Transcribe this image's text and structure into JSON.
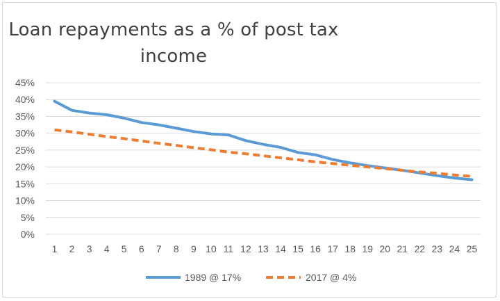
{
  "chart_data": {
    "type": "line",
    "title": "Loan repayments as a % of post tax income",
    "title_line1": "Loan repayments as a % of post tax",
    "title_line2": "income",
    "x": [
      1,
      2,
      3,
      4,
      5,
      6,
      7,
      8,
      9,
      10,
      11,
      12,
      13,
      14,
      15,
      16,
      17,
      18,
      19,
      20,
      21,
      22,
      23,
      24,
      25
    ],
    "y_ticks": [
      "0%",
      "5%",
      "10%",
      "15%",
      "20%",
      "25%",
      "30%",
      "35%",
      "40%",
      "45%"
    ],
    "ylim": [
      0,
      45
    ],
    "grid": true,
    "legend_position": "bottom",
    "series": [
      {
        "name": "1989 @ 17%",
        "color": "#5b9bd5",
        "style": "solid",
        "values": [
          39.5,
          36.8,
          36.0,
          35.5,
          34.5,
          33.2,
          32.5,
          31.5,
          30.5,
          29.8,
          29.5,
          27.8,
          26.7,
          25.8,
          24.3,
          23.6,
          22.2,
          21.2,
          20.4,
          19.7,
          19.0,
          18.2,
          17.4,
          16.7,
          16.2
        ]
      },
      {
        "name": "2017 @ 4%",
        "color": "#ed7d31",
        "style": "dashed",
        "values": [
          31.0,
          30.4,
          29.7,
          29.0,
          28.4,
          27.7,
          27.0,
          26.4,
          25.7,
          25.1,
          24.4,
          23.9,
          23.3,
          22.7,
          22.1,
          21.5,
          21.0,
          20.5,
          20.0,
          19.5,
          19.0,
          18.5,
          18.1,
          17.6,
          17.2
        ]
      }
    ]
  }
}
